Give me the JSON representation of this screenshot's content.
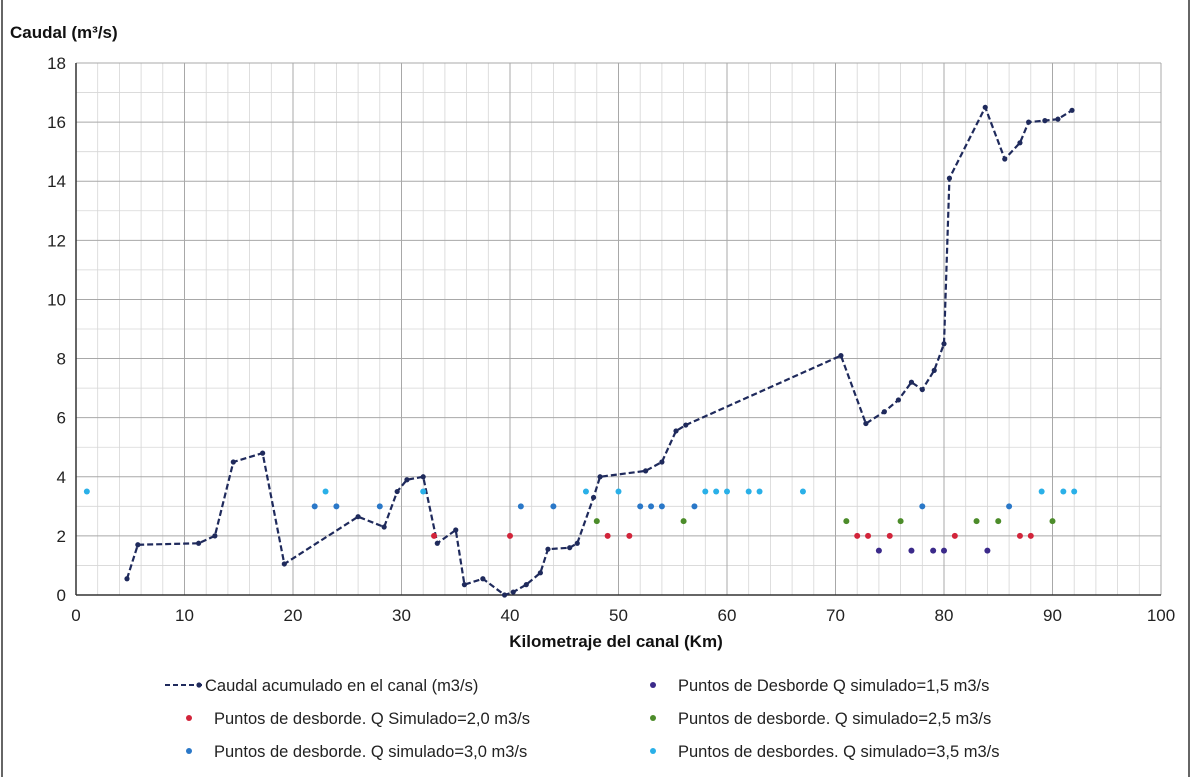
{
  "chart_data": {
    "type": "line",
    "ylabel": "Caudal (m³/s)",
    "xlabel": "Kilometraje del canal (Km)",
    "xlim": [
      0,
      100
    ],
    "ylim": [
      0,
      18
    ],
    "x_ticks": [
      0,
      10,
      20,
      30,
      40,
      50,
      60,
      70,
      80,
      90,
      100
    ],
    "y_ticks": [
      0,
      2,
      4,
      6,
      8,
      10,
      12,
      14,
      16,
      18
    ],
    "grid": true,
    "legend_position": "bottom",
    "series": [
      {
        "name": "Caudal acumulado en el canal (m3/s)",
        "kind": "line",
        "style": "dashed",
        "color": "#1f2a5c",
        "x": [
          4.7,
          5.7,
          11.3,
          12.8,
          14.5,
          17.2,
          19.2,
          26.0,
          28.4,
          29.6,
          30.5,
          32.0,
          33.3,
          35.0,
          35.8,
          37.5,
          39.5,
          40.3,
          41.5,
          42.8,
          43.5,
          45.5,
          46.2,
          47.7,
          48.3,
          52.5,
          54.0,
          55.3,
          56.2,
          70.5,
          72.8,
          74.5,
          75.8,
          77.0,
          78.0,
          79.1,
          80.0,
          80.5,
          83.8,
          85.6,
          87.0,
          87.8,
          89.3,
          90.5,
          91.8
        ],
        "y": [
          0.55,
          1.7,
          1.75,
          2.0,
          4.5,
          4.8,
          1.05,
          2.65,
          2.3,
          3.5,
          3.9,
          4.0,
          1.75,
          2.2,
          0.35,
          0.55,
          0.0,
          0.1,
          0.35,
          0.75,
          1.55,
          1.6,
          1.75,
          3.3,
          4.0,
          4.2,
          4.5,
          5.55,
          5.75,
          8.1,
          5.8,
          6.2,
          6.6,
          7.2,
          6.95,
          7.6,
          8.5,
          14.1,
          16.5,
          14.75,
          15.3,
          16.0,
          16.05,
          16.1,
          16.4
        ]
      },
      {
        "name": "Puntos de Desborde Q simulado=1,5 m3/s",
        "kind": "scatter",
        "color": "#3b2a8a",
        "x": [
          74,
          77,
          79,
          80,
          84
        ],
        "y": [
          1.5,
          1.5,
          1.5,
          1.5,
          1.5
        ]
      },
      {
        "name": "Puntos de desborde. Q Simulado=2,0 m3/s",
        "kind": "scatter",
        "color": "#d2243a",
        "x": [
          33,
          40,
          49,
          51,
          72,
          73,
          75,
          81,
          87,
          88
        ],
        "y": [
          2.0,
          2.0,
          2.0,
          2.0,
          2.0,
          2.0,
          2.0,
          2.0,
          2.0,
          2.0
        ]
      },
      {
        "name": "Puntos de desborde. Q simulado=2,5 m3/s",
        "kind": "scatter",
        "color": "#4c8c2a",
        "x": [
          48,
          56,
          71,
          76,
          83,
          85,
          90
        ],
        "y": [
          2.5,
          2.5,
          2.5,
          2.5,
          2.5,
          2.5,
          2.5
        ]
      },
      {
        "name": "Puntos de desborde. Q simulado=3,0 m3/s",
        "kind": "scatter",
        "color": "#2a78c8",
        "x": [
          22,
          24,
          28,
          41,
          44,
          52,
          53,
          54,
          57,
          78,
          86
        ],
        "y": [
          3.0,
          3.0,
          3.0,
          3.0,
          3.0,
          3.0,
          3.0,
          3.0,
          3.0,
          3.0,
          3.0
        ]
      },
      {
        "name": "Puntos de desbordes. Q simulado=3,5 m3/s",
        "kind": "scatter",
        "color": "#2ab0e8",
        "x": [
          1,
          23,
          32,
          47,
          50,
          58,
          59,
          60,
          62,
          63,
          67,
          89,
          91,
          92
        ],
        "y": [
          3.5,
          3.5,
          3.5,
          3.5,
          3.5,
          3.5,
          3.5,
          3.5,
          3.5,
          3.5,
          3.5,
          3.5,
          3.5,
          3.5
        ]
      }
    ]
  }
}
